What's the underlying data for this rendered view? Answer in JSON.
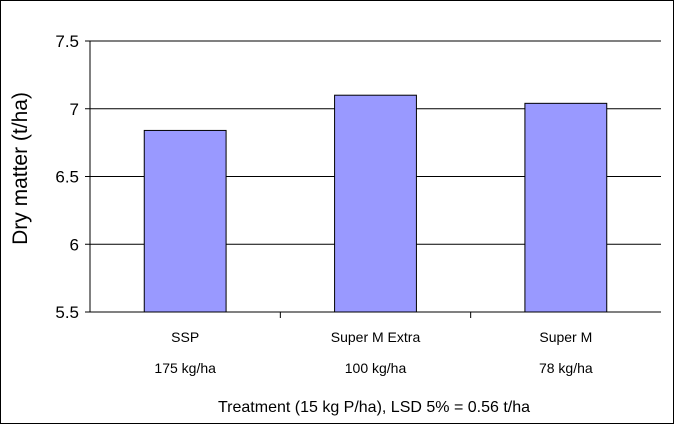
{
  "chart_data": {
    "type": "bar",
    "title": "",
    "xlabel": "Treatment (15 kg P/ha), LSD 5% = 0.56 t/ha",
    "ylabel": "Dry matter (t/ha)",
    "ylim": [
      5.5,
      7.5
    ],
    "yticks": [
      "5.5",
      "6",
      "6.5",
      "7",
      "7.5"
    ],
    "grid": true,
    "legend": "none",
    "categories": [
      "SSP",
      "Super M Extra",
      "Super M"
    ],
    "category_sublabels": [
      "175 kg/ha",
      "100 kg/ha",
      "78 kg/ha"
    ],
    "values": [
      6.84,
      7.1,
      7.04
    ],
    "colors": {
      "bar_fill": "#9999ff",
      "bar_stroke": "#000000",
      "gridline": "#000000"
    }
  }
}
